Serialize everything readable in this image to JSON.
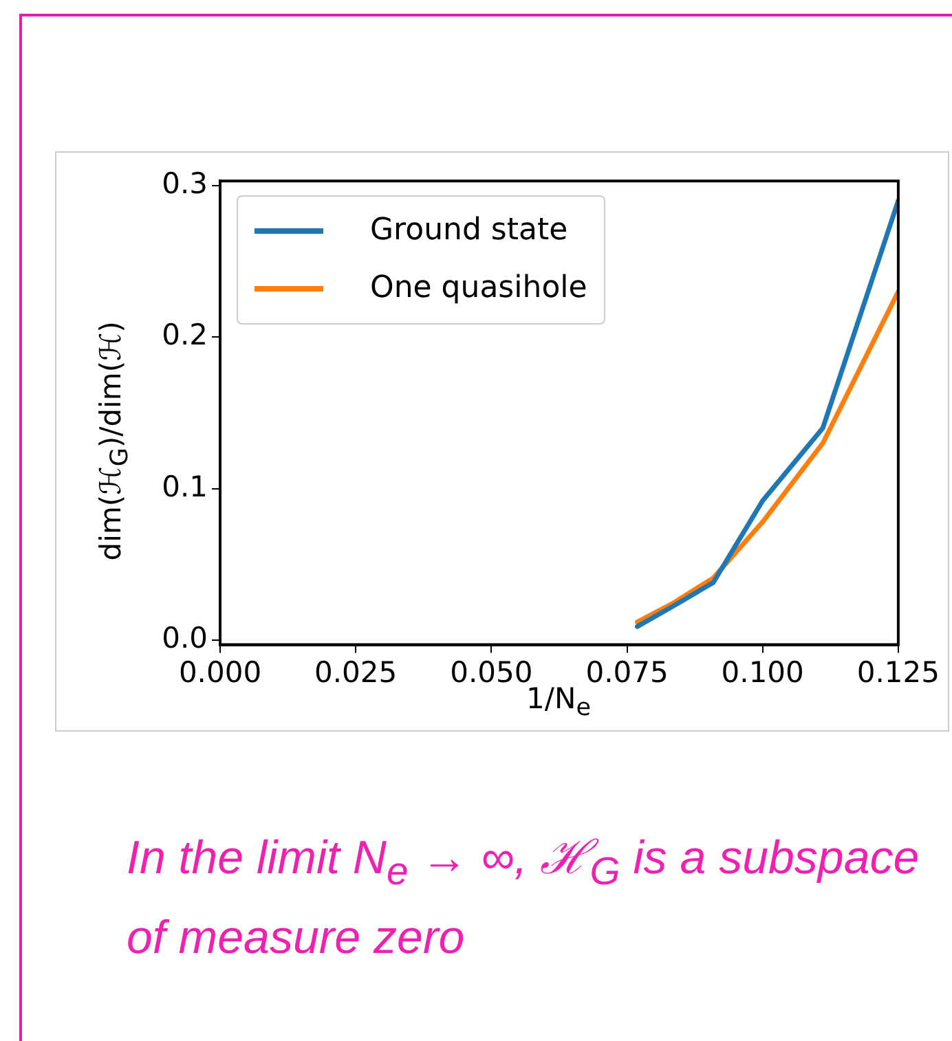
{
  "chart_data": {
    "type": "line",
    "xlabel": "1/N$_{e}$",
    "ylabel": "dim(ℋ$_{G}$)/dim(ℋ)",
    "annotations": [
      "In the limit N$_{e}$ → ∞,  ℋ$_{G}$ is a subspace of measure zero"
    ],
    "x": [
      0.0769,
      0.0833,
      0.0909,
      0.1,
      0.1111,
      0.125
    ],
    "series": [
      {
        "name": "Ground state",
        "color": "#1f77b4",
        "values": [
          0.009,
          0.022,
          0.038,
          0.092,
          0.14,
          0.29
        ]
      },
      {
        "name": "One quasihole",
        "color": "#ff7f0e",
        "values": [
          0.012,
          0.024,
          0.041,
          0.078,
          0.13,
          0.23
        ]
      }
    ],
    "xlim": [
      0,
      0.125
    ],
    "xticks": [
      {
        "value": 0,
        "label": "0.000"
      },
      {
        "value": 0.025,
        "label": "0.025"
      },
      {
        "value": 0.05,
        "label": "0.050"
      },
      {
        "value": 0.075,
        "label": "0.075"
      },
      {
        "value": 0.1,
        "label": "0.100"
      },
      {
        "value": 0.125,
        "label": "0.125"
      }
    ],
    "ylim": [
      -0.003,
      0.303
    ],
    "yticks": [
      {
        "value": 0,
        "label": "0.0"
      },
      {
        "value": 0.1,
        "label": "0.1"
      },
      {
        "value": 0.2,
        "label": "0.2"
      },
      {
        "value": 0.3,
        "label": "0.3"
      }
    ],
    "grid": false,
    "legend": "top left",
    "marker": "none",
    "line_style": "solid"
  }
}
